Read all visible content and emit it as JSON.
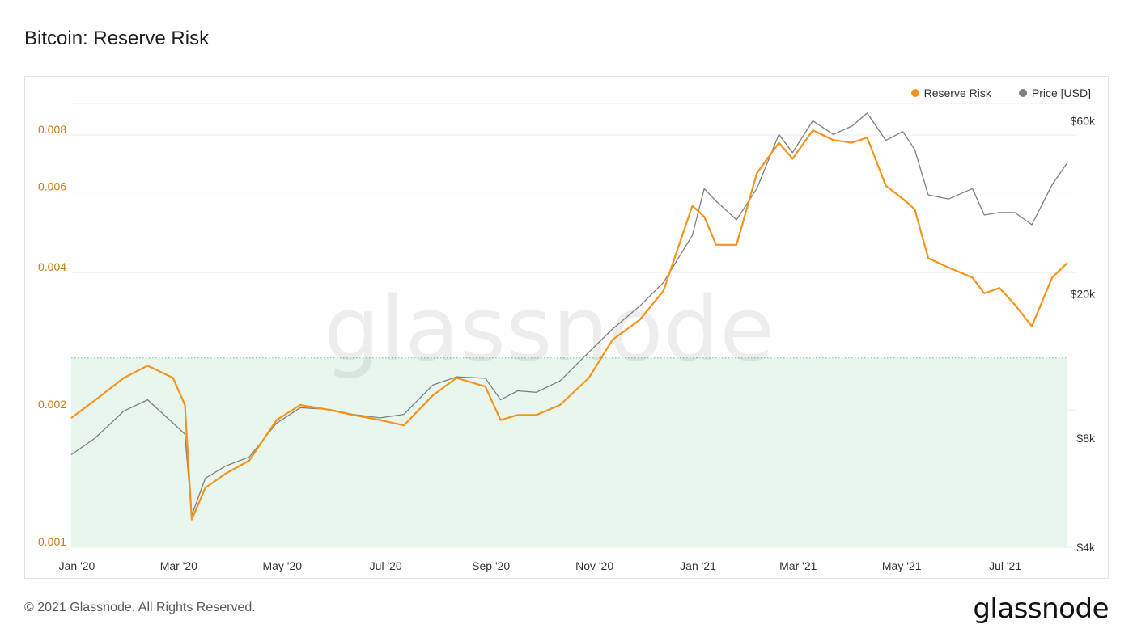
{
  "page": {
    "title": "Bitcoin: Reserve Risk",
    "footer": "© 2021 Glassnode. All Rights Reserved.",
    "brand": "glassnode",
    "watermark": "glassnode"
  },
  "colors": {
    "reserve_risk": "#f7931a",
    "price": "#7f7f7f",
    "zone_fill": "#e8f6ee",
    "zone_border": "#6cc18f",
    "left_axis_text": "#c77a12",
    "grid": "#ececec"
  },
  "chart_data": {
    "type": "line",
    "title": "Bitcoin: Reserve Risk",
    "legend": {
      "position": "top-right",
      "entries": [
        "Reserve Risk",
        "Price [USD]"
      ]
    },
    "grid": true,
    "x_ticks": [
      "Jan '20",
      "Mar '20",
      "May '20",
      "Jul '20",
      "Sep '20",
      "Nov '20",
      "Jan '21",
      "Mar '21",
      "May '21",
      "Jul '21"
    ],
    "y_left": {
      "scale": "log",
      "range": [
        0.001,
        0.0095
      ],
      "ticks": [
        "0.001",
        "0.002",
        "0.004",
        "0.006",
        "0.008"
      ],
      "tick_values": [
        0.001,
        0.002,
        0.004,
        0.006,
        0.008
      ]
    },
    "y_right": {
      "scale": "log",
      "range": [
        4000,
        68000
      ],
      "ticks": [
        "$4k",
        "$8k",
        "$20k",
        "$60k"
      ],
      "tick_values": [
        4000,
        8000,
        20000,
        60000
      ]
    },
    "zone": {
      "y_max": 0.0026,
      "label": "green zone"
    },
    "x_dates": [
      "2020-01-01",
      "2020-01-15",
      "2020-02-01",
      "2020-02-15",
      "2020-03-01",
      "2020-03-08",
      "2020-03-12",
      "2020-03-20",
      "2020-04-01",
      "2020-04-15",
      "2020-05-01",
      "2020-05-15",
      "2020-06-01",
      "2020-06-15",
      "2020-07-01",
      "2020-07-15",
      "2020-08-01",
      "2020-08-15",
      "2020-09-01",
      "2020-09-10",
      "2020-09-20",
      "2020-10-01",
      "2020-10-15",
      "2020-11-01",
      "2020-11-15",
      "2020-12-01",
      "2020-12-15",
      "2021-01-01",
      "2021-01-08",
      "2021-01-15",
      "2021-01-27",
      "2021-02-08",
      "2021-02-21",
      "2021-03-01",
      "2021-03-13",
      "2021-03-25",
      "2021-04-05",
      "2021-04-14",
      "2021-04-25",
      "2021-05-05",
      "2021-05-12",
      "2021-05-20",
      "2021-06-01",
      "2021-06-15",
      "2021-06-22",
      "2021-07-01",
      "2021-07-10",
      "2021-07-20",
      "2021-08-01",
      "2021-08-10"
    ],
    "series": [
      {
        "name": "Reserve Risk",
        "axis": "left",
        "values": [
          0.00192,
          0.0021,
          0.00235,
          0.0025,
          0.00235,
          0.00205,
          0.00115,
          0.00135,
          0.00145,
          0.00155,
          0.0019,
          0.00205,
          0.002,
          0.00195,
          0.0019,
          0.00185,
          0.00215,
          0.00235,
          0.00225,
          0.0019,
          0.00195,
          0.00195,
          0.00205,
          0.00235,
          0.00285,
          0.00315,
          0.00365,
          0.0056,
          0.0053,
          0.0046,
          0.0046,
          0.0066,
          0.0077,
          0.0071,
          0.0082,
          0.0078,
          0.0077,
          0.0079,
          0.0062,
          0.0058,
          0.0055,
          0.0043,
          0.0041,
          0.0039,
          0.0036,
          0.0037,
          0.0034,
          0.00305,
          0.0039,
          0.0042
        ]
      },
      {
        "name": "Price [USD]",
        "axis": "right",
        "values": [
          7200,
          8000,
          9500,
          10200,
          8800,
          8200,
          4900,
          6200,
          6700,
          7100,
          8800,
          9700,
          9600,
          9300,
          9100,
          9300,
          11200,
          11800,
          11700,
          10200,
          10800,
          10700,
          11500,
          13800,
          16000,
          18500,
          21500,
          29000,
          39000,
          36000,
          32000,
          39000,
          55000,
          49000,
          60000,
          55000,
          58000,
          63000,
          53000,
          56000,
          50000,
          37500,
          36500,
          39000,
          33000,
          33500,
          33500,
          31000,
          40000,
          46000
        ]
      }
    ]
  }
}
